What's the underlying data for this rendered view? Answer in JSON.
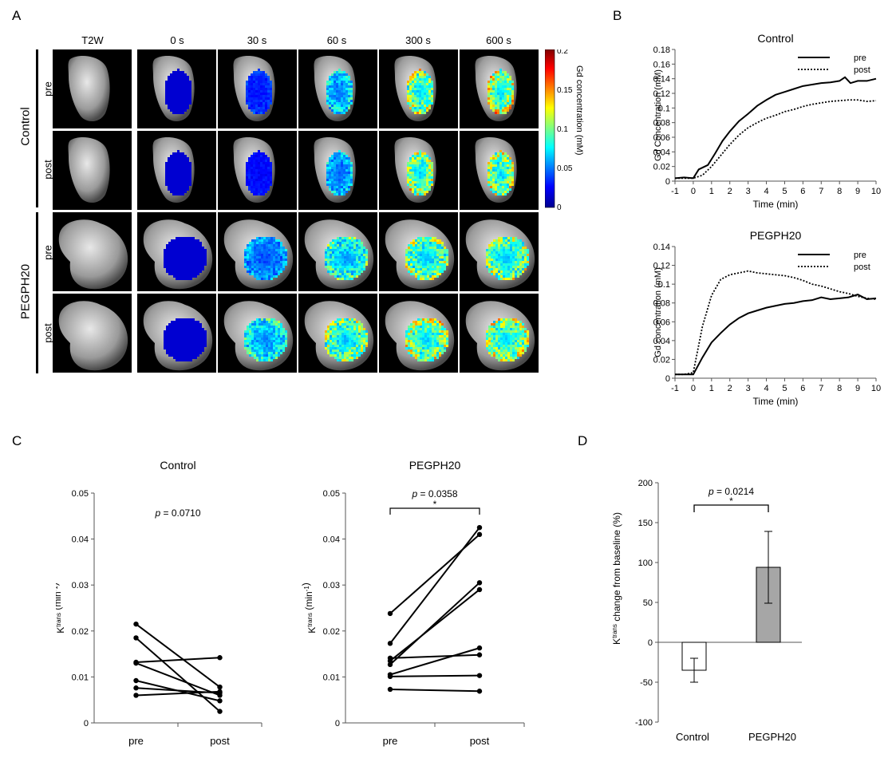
{
  "panels": {
    "A": "A",
    "B": "B",
    "C": "C",
    "D": "D"
  },
  "panelA": {
    "time_labels": [
      "T2W",
      "0 s",
      "30 s",
      "60 s",
      "300 s",
      "600 s"
    ],
    "groups": [
      {
        "name": "Control",
        "rows": [
          "pre",
          "post"
        ]
      },
      {
        "name": "PEGPH20",
        "rows": [
          "pre",
          "post"
        ]
      }
    ],
    "colorbar": {
      "label": "Gd concentration (mM)",
      "ticks": [
        "0.2",
        "0.15",
        "0.1",
        "0.05",
        "0"
      ],
      "colors": [
        "#800000",
        "#ff0000",
        "#ffff00",
        "#00ffff",
        "#0000ff",
        "#00008f"
      ]
    },
    "fill_level": [
      [
        0,
        0,
        0.1,
        0.35,
        0.6,
        0.65
      ],
      [
        0,
        0,
        0.05,
        0.3,
        0.6,
        0.62
      ],
      [
        0,
        0,
        0.25,
        0.45,
        0.55,
        0.55
      ],
      [
        0,
        0,
        0.4,
        0.55,
        0.6,
        0.6
      ]
    ]
  },
  "chart_data": [
    {
      "type": "line",
      "title": "Control",
      "xlabel": "Time (min)",
      "ylabel": "Gd Concentration (mM)",
      "xlim": [
        -1,
        10
      ],
      "ylim": [
        0,
        0.18
      ],
      "xticks": [
        "-1",
        "0",
        "1",
        "2",
        "3",
        "4",
        "5",
        "6",
        "7",
        "8",
        "9",
        "10"
      ],
      "yticks": [
        "0",
        "0.02",
        "0.04",
        "0.06",
        "0.08",
        "0.1",
        "0.12",
        "0.14",
        "0.16",
        "0.18"
      ],
      "series": [
        {
          "name": "pre",
          "style": "solid",
          "x": [
            -1,
            -0.5,
            0,
            0.3,
            0.8,
            1.2,
            1.6,
            2,
            2.5,
            3,
            3.5,
            4,
            4.5,
            5,
            5.5,
            6,
            6.5,
            7,
            7.5,
            8,
            8.3,
            8.6,
            9,
            9.5,
            10
          ],
          "y": [
            0.004,
            0.005,
            0.004,
            0.016,
            0.022,
            0.038,
            0.055,
            0.068,
            0.082,
            0.092,
            0.103,
            0.111,
            0.118,
            0.122,
            0.126,
            0.13,
            0.132,
            0.134,
            0.135,
            0.137,
            0.142,
            0.134,
            0.137,
            0.137,
            0.14
          ]
        },
        {
          "name": "post",
          "style": "dotted",
          "x": [
            -1,
            -0.5,
            0,
            0.5,
            1,
            1.5,
            2,
            2.5,
            3,
            3.5,
            4,
            4.5,
            5,
            5.5,
            6,
            6.5,
            7,
            7.5,
            8,
            8.5,
            9,
            9.5,
            10
          ],
          "y": [
            0.004,
            0.004,
            0.004,
            0.008,
            0.02,
            0.035,
            0.05,
            0.063,
            0.073,
            0.08,
            0.086,
            0.09,
            0.095,
            0.098,
            0.102,
            0.105,
            0.107,
            0.109,
            0.11,
            0.111,
            0.111,
            0.109,
            0.11
          ]
        }
      ]
    },
    {
      "type": "line",
      "title": "PEGPH20",
      "xlabel": "Time (min)",
      "ylabel": "Gd concentration (mM)",
      "xlim": [
        -1,
        10
      ],
      "ylim": [
        0,
        0.14
      ],
      "xticks": [
        "-1",
        "0",
        "1",
        "2",
        "3",
        "4",
        "5",
        "6",
        "7",
        "8",
        "9",
        "10"
      ],
      "yticks": [
        "0",
        "0.02",
        "0.04",
        "0.06",
        "0.08",
        "0.1",
        "0.12",
        "0.14"
      ],
      "series": [
        {
          "name": "pre",
          "style": "solid",
          "x": [
            -1,
            -0.5,
            0,
            0.5,
            1,
            1.5,
            2,
            2.5,
            3,
            3.5,
            4,
            4.5,
            5,
            5.5,
            6,
            6.5,
            7,
            7.5,
            8,
            8.5,
            9,
            9.5,
            10
          ],
          "y": [
            0.004,
            0.004,
            0.004,
            0.022,
            0.038,
            0.048,
            0.057,
            0.064,
            0.069,
            0.072,
            0.075,
            0.077,
            0.079,
            0.08,
            0.082,
            0.083,
            0.086,
            0.084,
            0.085,
            0.086,
            0.089,
            0.084,
            0.085
          ]
        },
        {
          "name": "post",
          "style": "dotted",
          "x": [
            -1,
            -0.5,
            0,
            0.5,
            1,
            1.5,
            2,
            2.5,
            3,
            3.5,
            4,
            4.5,
            5,
            5.5,
            6,
            6.5,
            7,
            7.5,
            8,
            8.5,
            9,
            9.5,
            10
          ],
          "y": [
            0.004,
            0.004,
            0.006,
            0.055,
            0.088,
            0.105,
            0.11,
            0.112,
            0.114,
            0.112,
            0.111,
            0.11,
            0.109,
            0.107,
            0.104,
            0.1,
            0.098,
            0.095,
            0.092,
            0.09,
            0.087,
            0.085,
            0.084
          ]
        }
      ]
    },
    {
      "type": "line",
      "title": "Control",
      "ylabel_main": "K",
      "ylabel_sup": "trans",
      "ylabel_unit": " (min",
      "ylabel_unit_sup": "-1",
      "ylabel_end": ")",
      "categories": [
        "pre",
        "post"
      ],
      "ylim": [
        0,
        0.05
      ],
      "yticks": [
        "0",
        "0.01",
        "0.02",
        "0.03",
        "0.04",
        "0.05"
      ],
      "p_prefix": "p",
      "p_value": " = 0.0710",
      "pairs": [
        [
          0.0215,
          0.0078
        ],
        [
          0.0185,
          0.0025
        ],
        [
          0.0132,
          0.0142
        ],
        [
          0.013,
          0.006
        ],
        [
          0.0092,
          0.0048
        ],
        [
          0.0076,
          0.0065
        ],
        [
          0.006,
          0.0068
        ]
      ]
    },
    {
      "type": "line",
      "title": "PEGPH20",
      "ylabel_main": "K",
      "ylabel_sup": "trans",
      "ylabel_unit": " (min",
      "ylabel_unit_sup": "-1",
      "ylabel_end": ")",
      "categories": [
        "pre",
        "post"
      ],
      "ylim": [
        0,
        0.05
      ],
      "yticks": [
        "0",
        "0.01",
        "0.02",
        "0.03",
        "0.04",
        "0.05"
      ],
      "p_prefix": "p",
      "p_value": " = 0.0358",
      "sig": "*",
      "pairs": [
        [
          0.0238,
          0.041
        ],
        [
          0.0173,
          0.0425
        ],
        [
          0.0141,
          0.0148
        ],
        [
          0.0135,
          0.029
        ],
        [
          0.0127,
          0.0305
        ],
        [
          0.0105,
          0.0163
        ],
        [
          0.0101,
          0.0103
        ],
        [
          0.0073,
          0.0069
        ]
      ]
    },
    {
      "type": "bar",
      "categories": [
        "Control",
        "PEGPH20"
      ],
      "values": [
        -35,
        94
      ],
      "errors": [
        15,
        45
      ],
      "colors": [
        "#ffffff",
        "#a6a6a6"
      ],
      "ylim": [
        -100,
        200
      ],
      "yticks": [
        "-100",
        "-50",
        "0",
        "50",
        "100",
        "150",
        "200"
      ],
      "ylabel_main": "K",
      "ylabel_sup": "trans",
      "ylabel_rest": " change from baseline (%)",
      "p_prefix": "p",
      "p_value": " = 0.0214",
      "sig": "*"
    }
  ]
}
